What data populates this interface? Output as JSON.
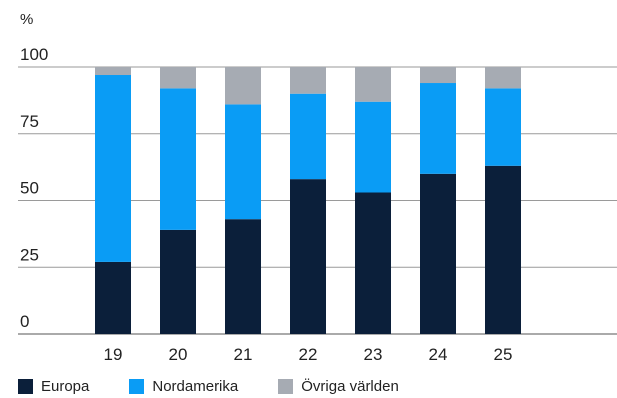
{
  "chart_data": {
    "type": "bar",
    "stacked": true,
    "unit_label": "%",
    "categories": [
      "19",
      "20",
      "21",
      "22",
      "23",
      "24",
      "25"
    ],
    "series": [
      {
        "name": "Europa",
        "color": "#0b1f3a",
        "values": [
          27,
          39,
          43,
          58,
          53,
          60,
          63
        ]
      },
      {
        "name": "Nordamerika",
        "color": "#0a9cf5",
        "values": [
          70,
          53,
          43,
          32,
          34,
          34,
          29
        ]
      },
      {
        "name": "Övriga världen",
        "color": "#a6abb3",
        "values": [
          3,
          8,
          14,
          10,
          13,
          6,
          8
        ]
      }
    ],
    "y_ticks": [
      "0",
      "25",
      "50",
      "75",
      "100"
    ],
    "ylim": [
      0,
      100
    ],
    "grid": true,
    "legend_position": "bottom-left"
  }
}
